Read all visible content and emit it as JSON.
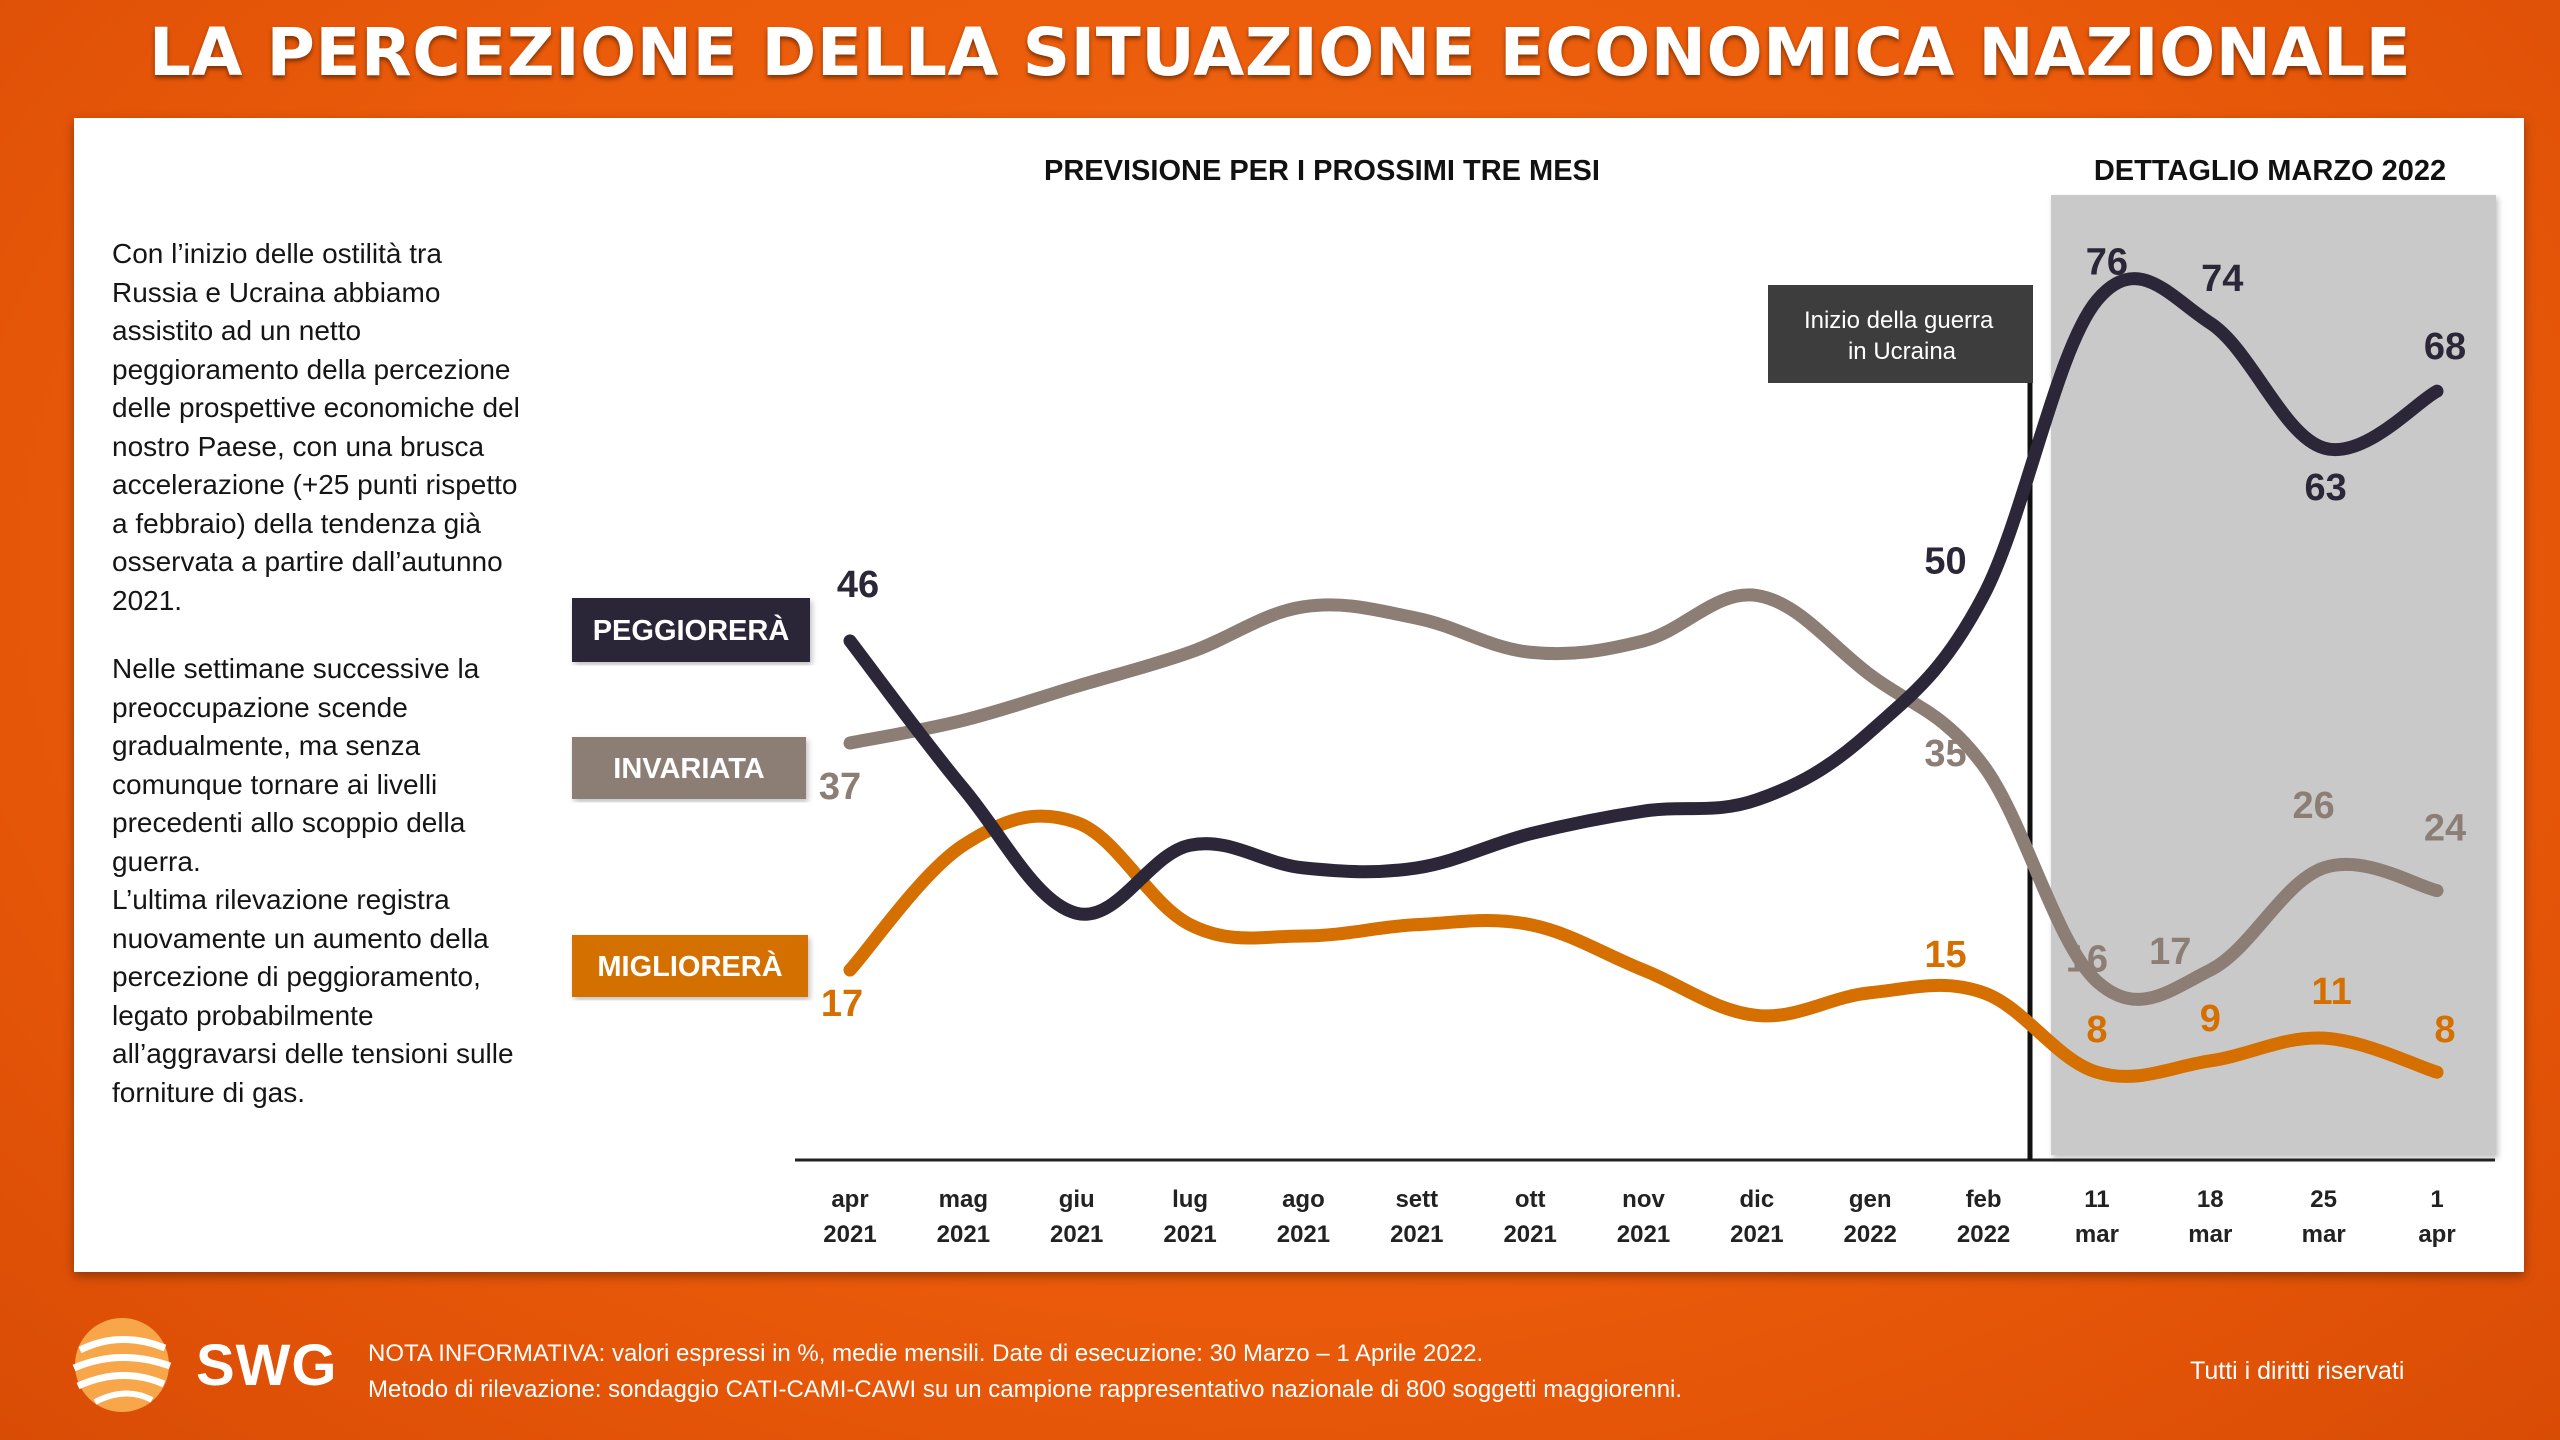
{
  "title": "LA PERCEZIONE DELLA SITUAZIONE ECONOMICA NAZIONALE",
  "narrative": {
    "paragraph1": "Con l’inizio delle ostilità tra Russia e Ucraina abbiamo assistito ad un netto peggioramento della percezione delle prospettive economiche del nostro Paese, con una brusca accelerazione (+25 punti rispetto a febbraio) della tendenza già osservata a partire dall’autunno 2021.",
    "paragraph2": "Nelle settimane successive la preoccupazione scende gradualmente, ma senza comunque tornare ai livelli precedenti allo scoppio della guerra.",
    "paragraph3": "L’ultima rilevazione registra nuovamente un aumento della percezione di peggioramento, legato probabilmente all’aggravarsi delle tensioni sulle forniture di gas."
  },
  "chart_data": {
    "type": "line",
    "subtitle_left": "PREVISIONE PER I PROSSIMI TRE MESI",
    "subtitle_right": "DETTAGLIO MARZO 2022",
    "annotation": "Inizio della guerra in Ucraina",
    "annotation_lines": [
      "Inizio della guerra",
      "in Ucraina"
    ],
    "categories": [
      [
        "apr",
        "2021"
      ],
      [
        "mag",
        "2021"
      ],
      [
        "giu",
        "2021"
      ],
      [
        "lug",
        "2021"
      ],
      [
        "ago",
        "2021"
      ],
      [
        "sett",
        "2021"
      ],
      [
        "ott",
        "2021"
      ],
      [
        "nov",
        "2021"
      ],
      [
        "dic",
        "2021"
      ],
      [
        "gen",
        "2022"
      ],
      [
        "feb",
        "2022"
      ],
      [
        "11",
        "mar"
      ],
      [
        "18",
        "mar"
      ],
      [
        "25",
        "mar"
      ],
      [
        "1",
        "apr"
      ]
    ],
    "ylim": [
      0,
      90
    ],
    "series": [
      {
        "name": "PEGGIORERÀ",
        "color": "#2b2738",
        "label_bg": "#2b2738",
        "values": [
          46,
          33,
          22,
          28,
          26,
          26,
          29,
          31,
          32,
          38,
          50,
          76,
          74,
          63,
          68
        ],
        "labels": [
          {
            "i": 0,
            "text": "46"
          },
          {
            "i": 10,
            "text": "50"
          },
          {
            "i": 11,
            "text": "76"
          },
          {
            "i": 12,
            "text": "74"
          },
          {
            "i": 13,
            "text": "63"
          },
          {
            "i": 14,
            "text": "68"
          }
        ]
      },
      {
        "name": "INVARIATA",
        "color": "#8c7e75",
        "label_bg": "#8c7e75",
        "values": [
          37,
          39,
          42,
          45,
          49,
          48,
          45,
          46,
          50,
          43,
          35,
          16,
          17,
          26,
          24
        ],
        "labels": [
          {
            "i": 0,
            "text": "37"
          },
          {
            "i": 10,
            "text": "35"
          },
          {
            "i": 11,
            "text": "16"
          },
          {
            "i": 12,
            "text": "17"
          },
          {
            "i": 13,
            "text": "26"
          },
          {
            "i": 14,
            "text": "24"
          }
        ]
      },
      {
        "name": "MIGLIORERÀ",
        "color": "#d46f00",
        "label_bg": "#d46f00",
        "values": [
          17,
          28,
          30,
          21,
          20,
          21,
          21,
          17,
          13,
          15,
          15,
          8,
          9,
          11,
          8
        ],
        "labels": [
          {
            "i": 0,
            "text": "17"
          },
          {
            "i": 10,
            "text": "15"
          },
          {
            "i": 11,
            "text": "8"
          },
          {
            "i": 12,
            "text": "9"
          },
          {
            "i": 13,
            "text": "11"
          },
          {
            "i": 14,
            "text": "8"
          }
        ]
      }
    ]
  },
  "footer": {
    "note_line1": "NOTA INFORMATIVA: valori espressi in %, medie mensili. Date di esecuzione: 30 Marzo – 1 Aprile 2022.",
    "note_line2": "Metodo di rilevazione: sondaggio CATI-CAMI-CAWI su un campione rappresentativo nazionale di 800 soggetti maggiorenni.",
    "rights": "Tutti i diritti riservati",
    "logo_text": "SWG"
  }
}
